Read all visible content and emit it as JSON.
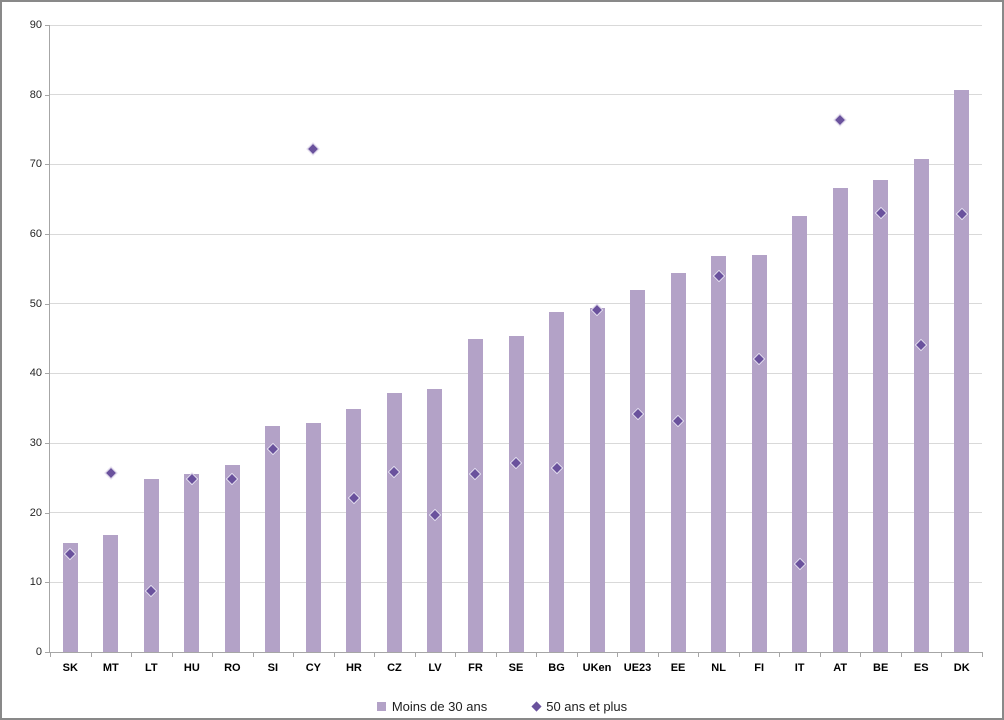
{
  "window": {
    "background": "#ffffff",
    "border_color": "#898989"
  },
  "chart_data": {
    "type": "bar",
    "title": "",
    "xlabel": "",
    "ylabel": "",
    "categories": [
      "SK",
      "MT",
      "LT",
      "HU",
      "RO",
      "SI",
      "CY",
      "HR",
      "CZ",
      "LV",
      "FR",
      "SE",
      "BG",
      "UKen",
      "UE23",
      "EE",
      "NL",
      "FI",
      "IT",
      "AT",
      "BE",
      "ES",
      "DK"
    ],
    "series": [
      {
        "name": "Moins de 30 ans",
        "type": "bar",
        "marker": "square",
        "color": "#b3a2c7",
        "values": [
          15.7,
          16.8,
          24.9,
          25.5,
          26.9,
          32.5,
          32.9,
          34.9,
          37.2,
          37.7,
          44.9,
          45.3,
          48.8,
          49.4,
          52.0,
          54.4,
          56.8,
          57.0,
          62.6,
          66.6,
          67.7,
          70.7,
          80.6
        ]
      },
      {
        "name": "50 ans et plus",
        "type": "scatter",
        "marker": "diamond",
        "color": "#6a529d",
        "values": [
          14.0,
          25.7,
          8.8,
          24.9,
          24.8,
          29.2,
          72.2,
          22.1,
          25.8,
          19.6,
          25.6,
          27.1,
          26.4,
          49.1,
          34.1,
          33.1,
          54.0,
          42.0,
          12.7,
          76.3,
          63.0,
          44.1,
          62.9
        ]
      }
    ],
    "ylim": [
      0,
      90
    ],
    "yticks": [
      0,
      10,
      20,
      30,
      40,
      50,
      60,
      70,
      80,
      90
    ],
    "grid": true,
    "legend_position": "bottom",
    "colors": {
      "gridline": "#d9d9d9",
      "axis": "#a6a6a6",
      "tick_label": "#262626",
      "category_label": "#000000",
      "legend_text": "#1f1f1f"
    }
  }
}
